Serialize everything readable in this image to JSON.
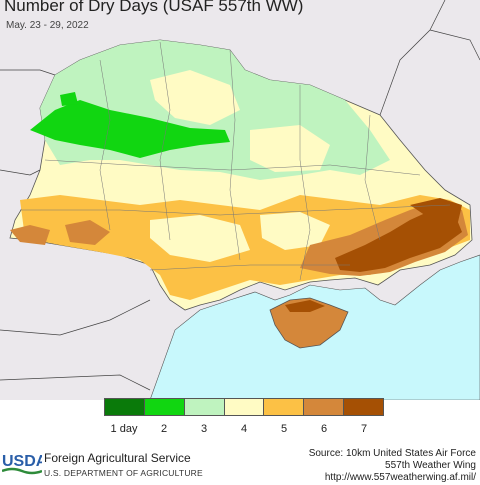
{
  "header": {
    "title": "Number of Dry Days (USAF 557th WW)",
    "subtitle": "May. 23 - 29, 2022"
  },
  "legend": {
    "colors": [
      "#0a7a0a",
      "#11d611",
      "#bff3bf",
      "#fffbc4",
      "#fcc145",
      "#d4873a",
      "#a55004"
    ],
    "labels": [
      "1 day",
      "2",
      "3",
      "4",
      "5",
      "6",
      "7"
    ]
  },
  "map_colors": {
    "sea": "#c8f8fc",
    "outside": "#ebe8ec",
    "border": "#555555"
  },
  "footer": {
    "agency": "Foreign Agricultural Service",
    "department": "U.S. DEPARTMENT OF AGRICULTURE",
    "logo_text": "USDA",
    "source_line1": "Source: 10km United States Air Force",
    "source_line2": "557th Weather Wing",
    "source_line3": "http://www.557weatherwing.af.mil/"
  }
}
